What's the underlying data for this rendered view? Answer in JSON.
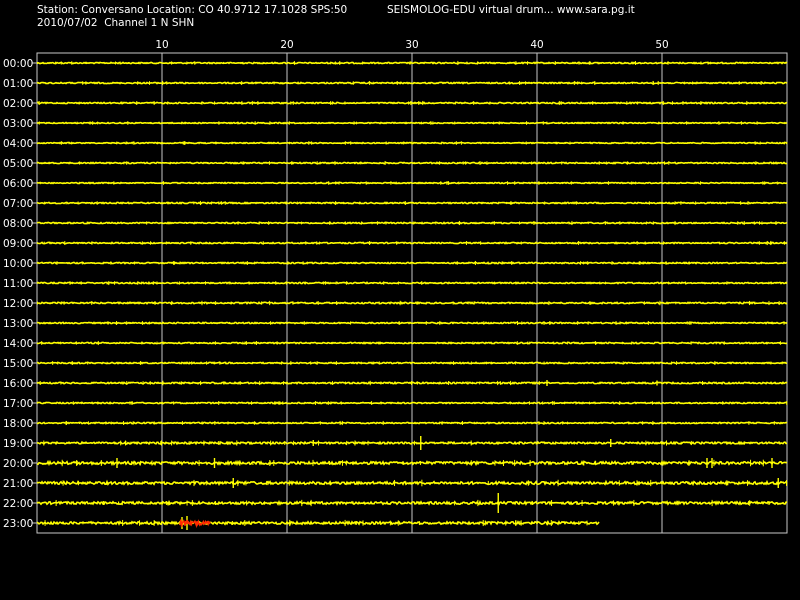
{
  "header": {
    "station_line": "Station: Conversano Location: CO 40.9712 17.1028 SPS:50",
    "date_line": "2010/07/02  Channel 1 N SHN",
    "software_line": "SEISMOLOG-EDU virtual drum... www.sara.pg.it"
  },
  "colors": {
    "background": "#000000",
    "trace": "#ffff00",
    "event": "#ff2a00",
    "grid": "#c8c8c8",
    "text": "#ffffff"
  },
  "chart_data": {
    "type": "line",
    "x_ticks": [
      "10",
      "20",
      "30",
      "40",
      "50"
    ],
    "x_tick_values": [
      10,
      20,
      30,
      40,
      50
    ],
    "xlim": [
      0,
      60
    ],
    "rows": [
      {
        "label": "00:00",
        "end_minute": 60,
        "noise": 0.6
      },
      {
        "label": "01:00",
        "end_minute": 60,
        "noise": 0.6
      },
      {
        "label": "02:00",
        "end_minute": 60,
        "noise": 0.6
      },
      {
        "label": "03:00",
        "end_minute": 60,
        "noise": 0.5
      },
      {
        "label": "04:00",
        "end_minute": 60,
        "noise": 0.5
      },
      {
        "label": "05:00",
        "end_minute": 60,
        "noise": 0.6
      },
      {
        "label": "06:00",
        "end_minute": 60,
        "noise": 0.5
      },
      {
        "label": "07:00",
        "end_minute": 60,
        "noise": 0.6
      },
      {
        "label": "08:00",
        "end_minute": 60,
        "noise": 0.6
      },
      {
        "label": "09:00",
        "end_minute": 60,
        "noise": 0.6
      },
      {
        "label": "10:00",
        "end_minute": 60,
        "noise": 0.6
      },
      {
        "label": "11:00",
        "end_minute": 60,
        "noise": 0.6
      },
      {
        "label": "12:00",
        "end_minute": 60,
        "noise": 0.7
      },
      {
        "label": "13:00",
        "end_minute": 60,
        "noise": 0.6
      },
      {
        "label": "14:00",
        "end_minute": 60,
        "noise": 0.6
      },
      {
        "label": "15:00",
        "end_minute": 60,
        "noise": 0.6
      },
      {
        "label": "16:00",
        "end_minute": 60,
        "noise": 0.7
      },
      {
        "label": "17:00",
        "end_minute": 60,
        "noise": 0.6
      },
      {
        "label": "18:00",
        "end_minute": 60,
        "noise": 0.6
      },
      {
        "label": "19:00",
        "end_minute": 60,
        "noise": 0.9
      },
      {
        "label": "20:00",
        "end_minute": 60,
        "noise": 1.3
      },
      {
        "label": "21:00",
        "end_minute": 60,
        "noise": 1.3
      },
      {
        "label": "22:00",
        "end_minute": 60,
        "noise": 1.2
      },
      {
        "label": "23:00",
        "end_minute": 45,
        "noise": 1.2
      }
    ],
    "spikes": [
      {
        "row": 16,
        "minute": 40.8,
        "amplitude": 3
      },
      {
        "row": 16,
        "minute": 49.6,
        "amplitude": 2.5
      },
      {
        "row": 19,
        "minute": 22.1,
        "amplitude": 3
      },
      {
        "row": 19,
        "minute": 30.7,
        "amplitude": 7
      },
      {
        "row": 19,
        "minute": 45.9,
        "amplitude": 4
      },
      {
        "row": 20,
        "minute": 6.4,
        "amplitude": 5
      },
      {
        "row": 20,
        "minute": 14.2,
        "amplitude": 5
      },
      {
        "row": 20,
        "minute": 53.6,
        "amplitude": 5
      },
      {
        "row": 20,
        "minute": 54.0,
        "amplitude": 5
      },
      {
        "row": 20,
        "minute": 58.8,
        "amplitude": 5
      },
      {
        "row": 21,
        "minute": 15.7,
        "amplitude": 5
      },
      {
        "row": 21,
        "minute": 59.3,
        "amplitude": 5
      },
      {
        "row": 22,
        "minute": 36.9,
        "amplitude": 10
      },
      {
        "row": 23,
        "minute": 11.6,
        "amplitude": 6
      },
      {
        "row": 23,
        "minute": 12.0,
        "amplitude": 7
      }
    ],
    "event": {
      "row": 23,
      "start_minute": 11.4,
      "end_minute": 13.9,
      "amplitude": 4
    }
  }
}
